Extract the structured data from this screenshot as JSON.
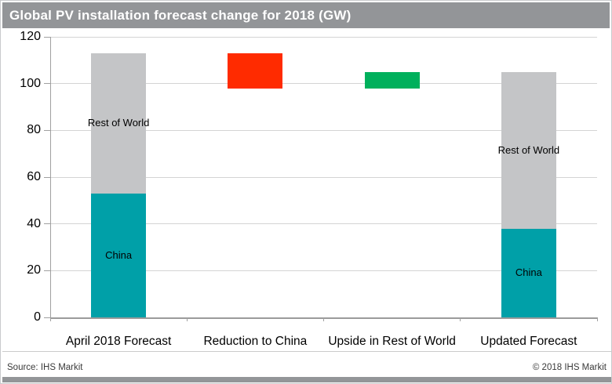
{
  "chart_data": {
    "type": "bar",
    "subtype": "stacked-waterfall",
    "title": "Global PV installation forecast change for 2018 (GW)",
    "xlabel": "",
    "ylabel": "",
    "ylim": [
      0,
      120
    ],
    "yticks": [
      0,
      20,
      40,
      60,
      80,
      100,
      120
    ],
    "grid": true,
    "legend_position": "none",
    "categories": [
      "April 2018 Forecast",
      "Reduction to China",
      "Upside in Rest of World",
      "Updated Forecast"
    ],
    "bars": [
      {
        "style": "stacked",
        "segments": [
          {
            "name": "China",
            "from": 0,
            "to": 53,
            "color": "china",
            "show_label": true
          },
          {
            "name": "Rest of World",
            "from": 53,
            "to": 113,
            "color": "rest_of_world",
            "show_label": true
          }
        ]
      },
      {
        "style": "floating",
        "segments": [
          {
            "name": "Reduction to China",
            "from": 98,
            "to": 113,
            "color": "reduction",
            "show_label": false
          }
        ]
      },
      {
        "style": "floating",
        "segments": [
          {
            "name": "Upside in Rest of World",
            "from": 98,
            "to": 105,
            "color": "upside",
            "show_label": false
          }
        ]
      },
      {
        "style": "stacked",
        "segments": [
          {
            "name": "China",
            "from": 0,
            "to": 38,
            "color": "china",
            "show_label": true
          },
          {
            "name": "Rest of World",
            "from": 38,
            "to": 105,
            "color": "rest_of_world",
            "show_label": true
          }
        ]
      }
    ]
  },
  "colors": {
    "china": "#00a0a8",
    "rest_of_world": "#c4c5c7",
    "reduction": "#ff2b00",
    "upside": "#00b05c",
    "header_bg": "#939598",
    "title_text": "#ffffff",
    "gridline": "#d4d4d4",
    "axis": "#a0a0a0",
    "bottom_bar": "#939598"
  },
  "footer": {
    "source": "Source: IHS Markit",
    "copyright": "© 2018 IHS Markit"
  }
}
